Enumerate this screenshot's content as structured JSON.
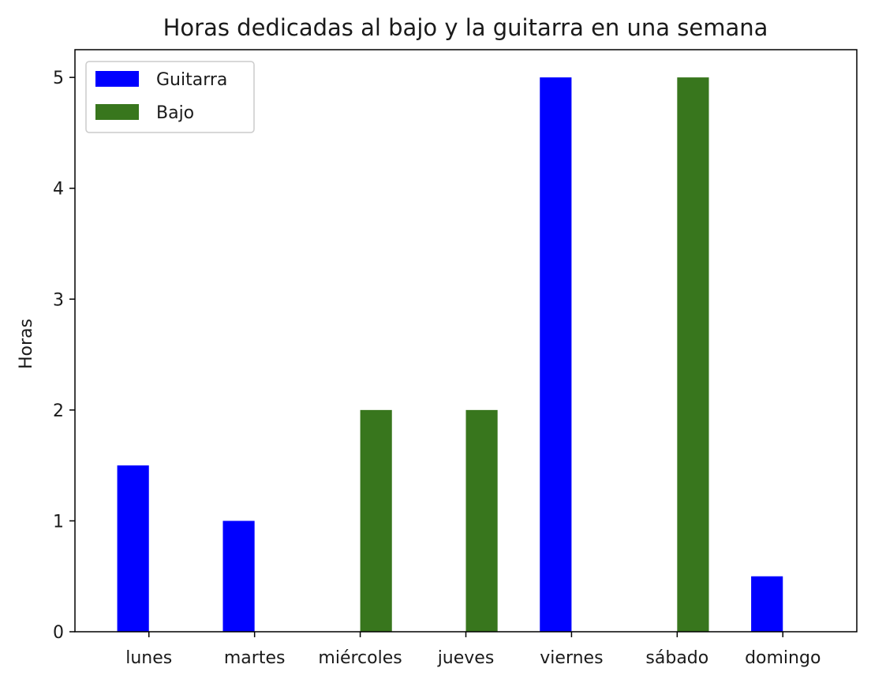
{
  "chart_data": {
    "type": "bar",
    "title": "Horas dedicadas al bajo y la guitarra en una semana",
    "xlabel": "",
    "ylabel": "Horas",
    "categories": [
      "lunes",
      "martes",
      "miércoles",
      "jueves",
      "viernes",
      "sábado",
      "domingo"
    ],
    "series": [
      {
        "name": "Guitarra",
        "color": "#0000ff",
        "values": [
          1.5,
          1,
          0,
          0,
          5,
          0,
          0.5
        ]
      },
      {
        "name": "Bajo",
        "color": "#38761d",
        "values": [
          0,
          0,
          2,
          2,
          0,
          5,
          0
        ]
      }
    ],
    "ylim": [
      0,
      5.25
    ],
    "yticks": [
      0,
      1,
      2,
      3,
      4,
      5
    ],
    "grid": false,
    "legend": "top-left"
  }
}
